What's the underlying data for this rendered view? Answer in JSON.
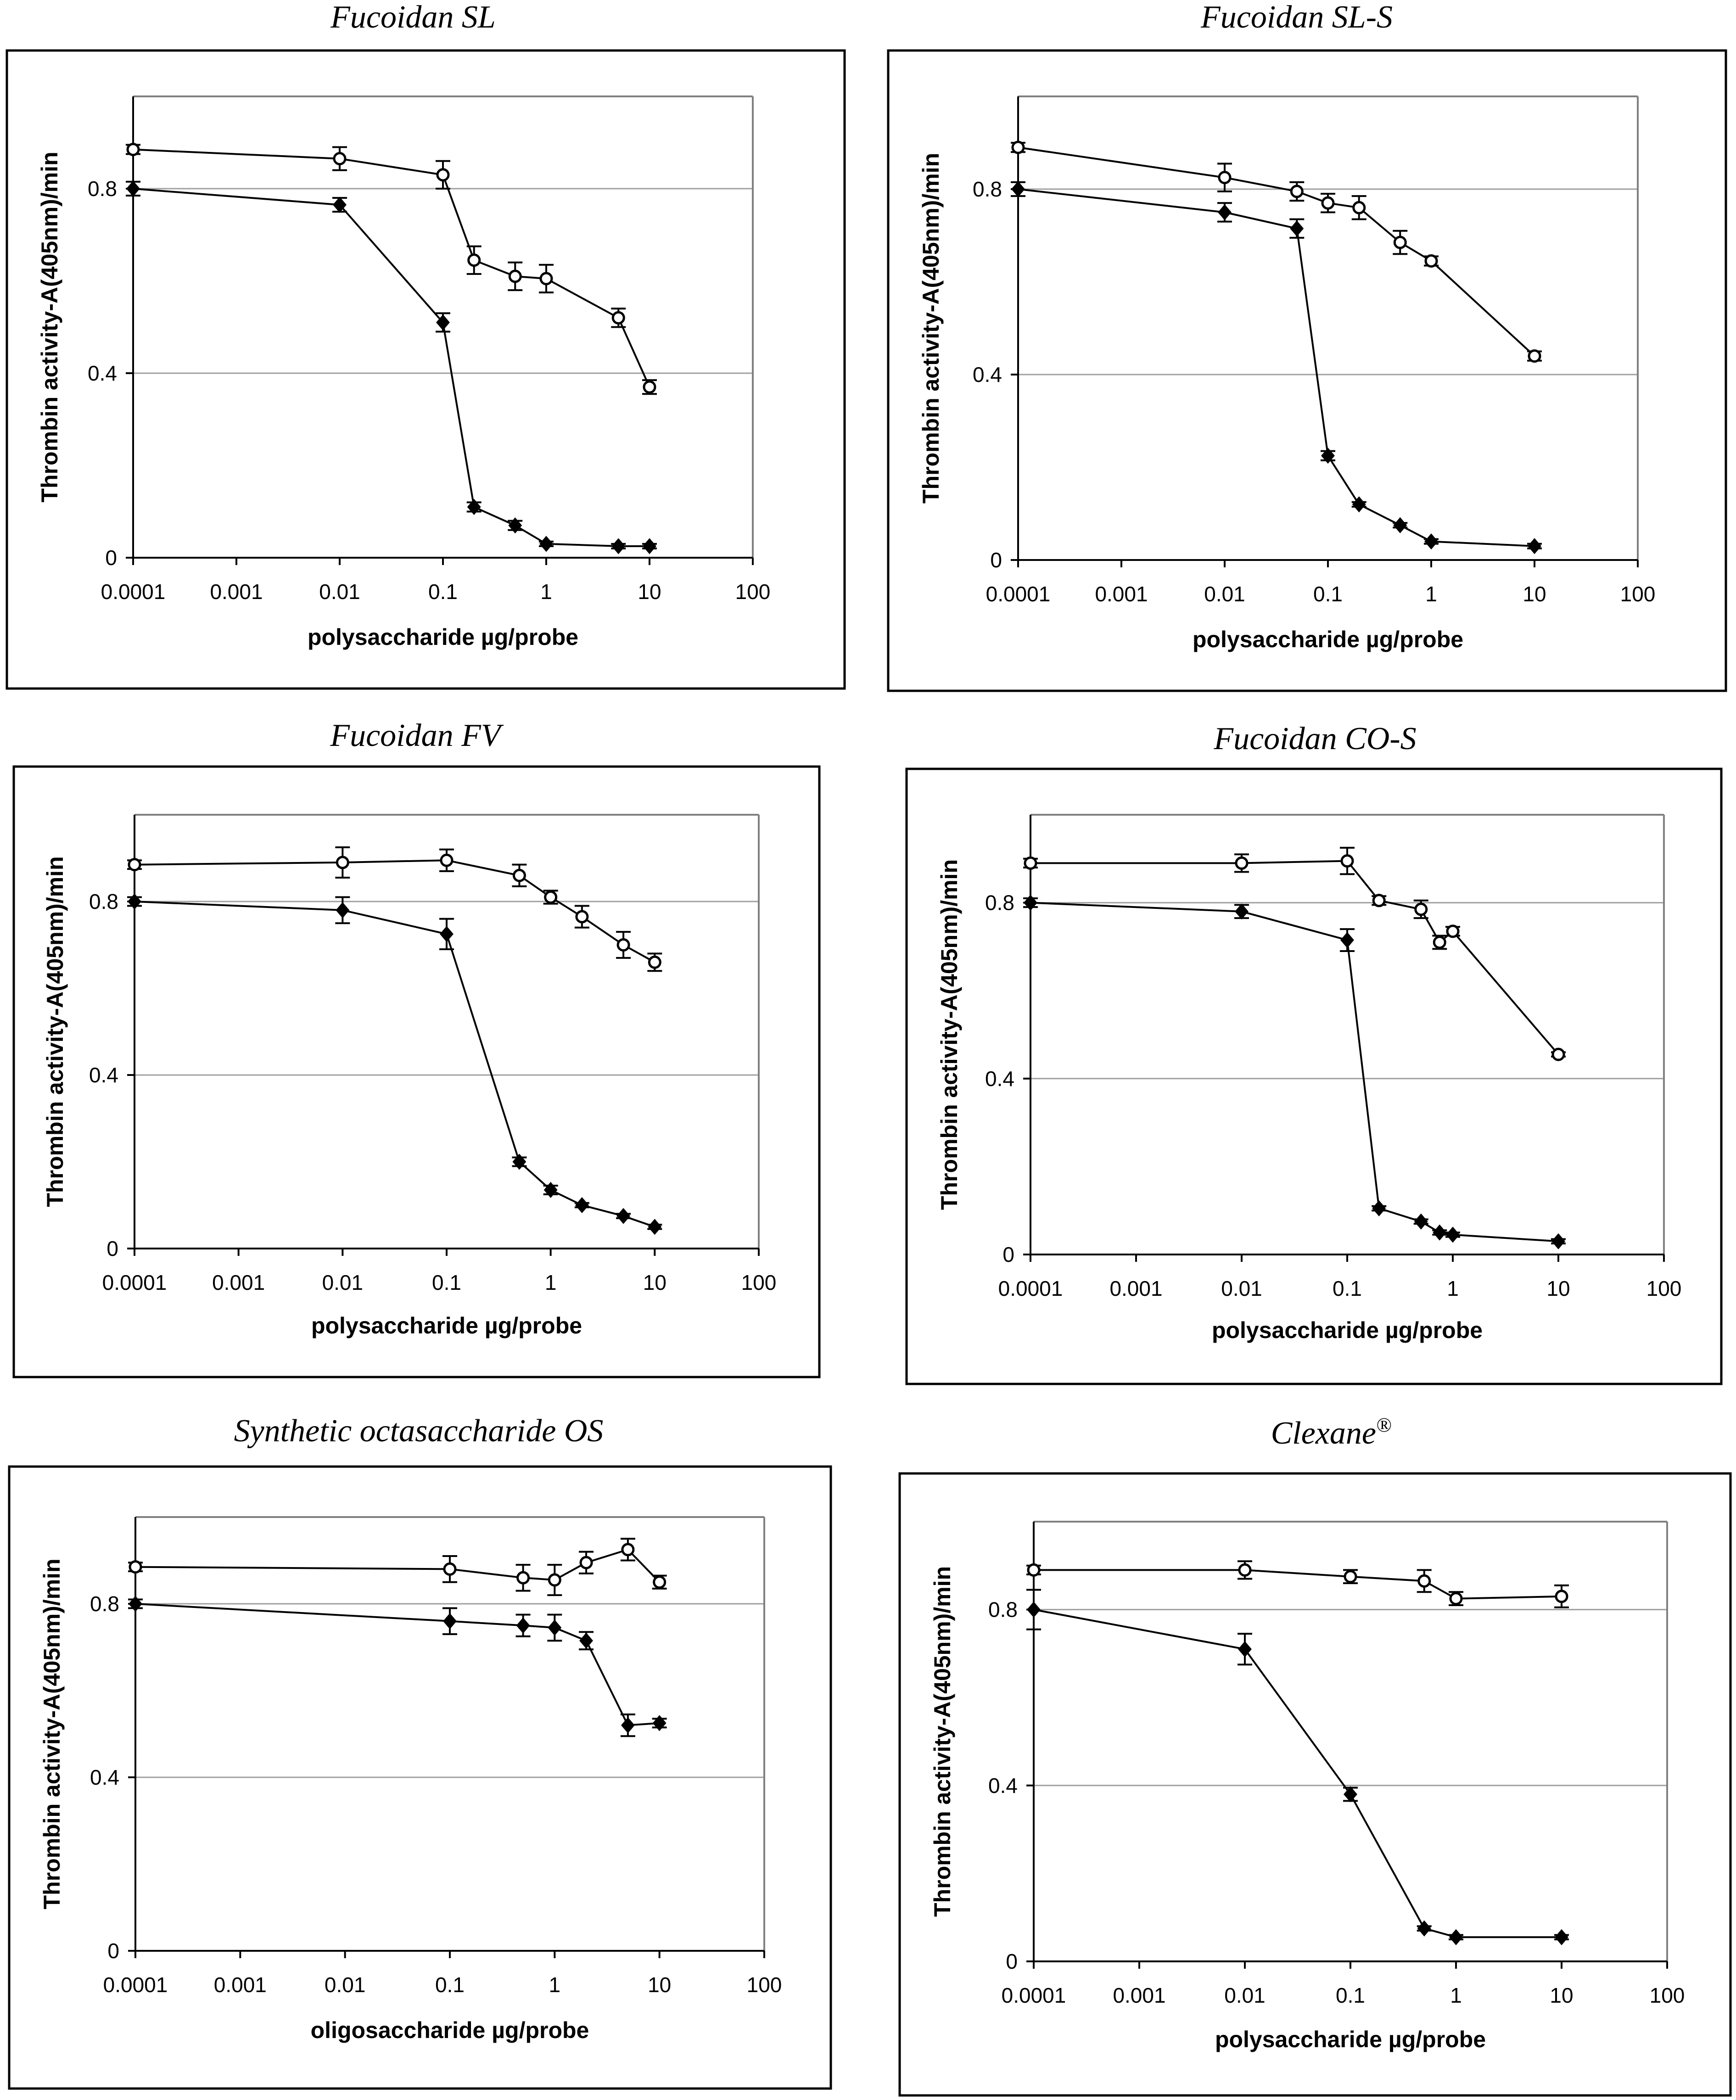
{
  "figure": {
    "series_styles": {
      "open_circle": {
        "stroke": "#000000",
        "fill": "#ffffff"
      },
      "filled_diamond": {
        "stroke": "#000000",
        "fill": "#000000"
      }
    },
    "frame_color": "#000000",
    "plot_border_color": "#808080",
    "grid_color": "#a0a0a0"
  },
  "chart_data": [
    {
      "type": "line",
      "title": "Fucoidan SL",
      "xlabel": "polysaccharide µg/probe",
      "ylabel": "Thrombin activity-A(405nm)/min",
      "xscale": "log",
      "xlim": [
        0.0001,
        100
      ],
      "ylim": [
        0,
        1.0
      ],
      "x_ticks": [
        "0.0001",
        "0.001",
        "0.01",
        "0.1",
        "1",
        "10",
        "100"
      ],
      "y_ticks": [
        "0",
        "0.4",
        "0.8"
      ],
      "grid": "horizontal",
      "series": [
        {
          "marker": "open_circle",
          "x": [
            0.0001,
            0.01,
            0.1,
            0.2,
            0.5,
            1,
            5,
            10
          ],
          "y": [
            0.885,
            0.865,
            0.83,
            0.645,
            0.61,
            0.605,
            0.52,
            0.37
          ],
          "err": [
            0.01,
            0.025,
            0.03,
            0.03,
            0.03,
            0.03,
            0.02,
            0.015
          ]
        },
        {
          "marker": "filled_diamond",
          "x": [
            0.0001,
            0.01,
            0.1,
            0.2,
            0.5,
            1,
            5,
            10
          ],
          "y": [
            0.8,
            0.765,
            0.51,
            0.11,
            0.07,
            0.03,
            0.025,
            0.025
          ],
          "err": [
            0.015,
            0.015,
            0.02,
            0.01,
            0.01,
            0.005,
            0.005,
            0.005
          ]
        }
      ]
    },
    {
      "type": "line",
      "title": "Fucoidan SL-S",
      "xlabel": "polysaccharide µg/probe",
      "ylabel": "Thrombin activity-A(405nm)/min",
      "xscale": "log",
      "xlim": [
        0.0001,
        100
      ],
      "ylim": [
        0,
        1.0
      ],
      "x_ticks": [
        "0.0001",
        "0.001",
        "0.01",
        "0.1",
        "1",
        "10",
        "100"
      ],
      "y_ticks": [
        "0",
        "0.4",
        "0.8"
      ],
      "grid": "horizontal",
      "series": [
        {
          "marker": "open_circle",
          "x": [
            0.0001,
            0.01,
            0.05,
            0.1,
            0.2,
            0.5,
            1,
            10
          ],
          "y": [
            0.89,
            0.825,
            0.795,
            0.77,
            0.76,
            0.685,
            0.645,
            0.44
          ],
          "err": [
            0.01,
            0.03,
            0.02,
            0.02,
            0.025,
            0.025,
            0.01,
            0.01
          ]
        },
        {
          "marker": "filled_diamond",
          "x": [
            0.0001,
            0.01,
            0.05,
            0.1,
            0.2,
            0.5,
            1,
            10
          ],
          "y": [
            0.8,
            0.75,
            0.715,
            0.225,
            0.12,
            0.075,
            0.04,
            0.03
          ],
          "err": [
            0.015,
            0.02,
            0.02,
            0.01,
            0.005,
            0.005,
            0.005,
            0.005
          ]
        }
      ]
    },
    {
      "type": "line",
      "title": "Fucoidan FV",
      "xlabel": "polysaccharide µg/probe",
      "ylabel": "Thrombin activity-A(405nm)/min",
      "xscale": "log",
      "xlim": [
        0.0001,
        100
      ],
      "ylim": [
        0,
        1.0
      ],
      "x_ticks": [
        "0.0001",
        "0.001",
        "0.01",
        "0.1",
        "1",
        "10",
        "100"
      ],
      "y_ticks": [
        "0",
        "0.4",
        "0.8"
      ],
      "grid": "horizontal",
      "series": [
        {
          "marker": "open_circle",
          "x": [
            0.0001,
            0.01,
            0.1,
            0.5,
            1,
            2,
            5,
            10
          ],
          "y": [
            0.885,
            0.89,
            0.895,
            0.86,
            0.81,
            0.765,
            0.7,
            0.66
          ],
          "err": [
            0.01,
            0.035,
            0.025,
            0.025,
            0.015,
            0.025,
            0.03,
            0.02
          ]
        },
        {
          "marker": "filled_diamond",
          "x": [
            0.0001,
            0.01,
            0.1,
            0.5,
            1,
            2,
            5,
            10
          ],
          "y": [
            0.8,
            0.78,
            0.725,
            0.2,
            0.135,
            0.1,
            0.075,
            0.05
          ],
          "err": [
            0.01,
            0.03,
            0.035,
            0.01,
            0.01,
            0.005,
            0.005,
            0.005
          ]
        }
      ]
    },
    {
      "type": "line",
      "title": "Fucoidan CO-S",
      "xlabel": "polysaccharide µg/probe",
      "ylabel": "Thrombin activity-A(405nm)/min",
      "xscale": "log",
      "xlim": [
        0.0001,
        100
      ],
      "ylim": [
        0,
        1.0
      ],
      "x_ticks": [
        "0.0001",
        "0.001",
        "0.01",
        "0.1",
        "1",
        "10",
        "100"
      ],
      "y_ticks": [
        "0",
        "0.4",
        "0.8"
      ],
      "grid": "horizontal",
      "series": [
        {
          "marker": "open_circle",
          "x": [
            0.0001,
            0.01,
            0.1,
            0.2,
            0.5,
            0.75,
            1,
            10
          ],
          "y": [
            0.89,
            0.89,
            0.895,
            0.805,
            0.785,
            0.71,
            0.735,
            0.455
          ],
          "err": [
            0.01,
            0.02,
            0.03,
            0.01,
            0.02,
            0.015,
            0.01,
            0.005
          ]
        },
        {
          "marker": "filled_diamond",
          "x": [
            0.0001,
            0.01,
            0.1,
            0.2,
            0.5,
            0.75,
            1,
            10
          ],
          "y": [
            0.8,
            0.78,
            0.715,
            0.105,
            0.075,
            0.05,
            0.045,
            0.03
          ],
          "err": [
            0.01,
            0.015,
            0.025,
            0.005,
            0.005,
            0.005,
            0.005,
            0.005
          ]
        }
      ]
    },
    {
      "type": "line",
      "title": "Synthetic octasaccharide OS",
      "xlabel": "oligosaccharide µg/probe",
      "ylabel": "Thrombin activity-A(405nm)/min",
      "xscale": "log",
      "xlim": [
        0.0001,
        100
      ],
      "ylim": [
        0,
        1.0
      ],
      "x_ticks": [
        "0.0001",
        "0.001",
        "0.01",
        "0.1",
        "1",
        "10",
        "100"
      ],
      "y_ticks": [
        "0",
        "0.4",
        "0.8"
      ],
      "grid": "horizontal",
      "series": [
        {
          "marker": "open_circle",
          "x": [
            0.0001,
            0.1,
            0.5,
            1,
            2,
            5,
            10
          ],
          "y": [
            0.885,
            0.88,
            0.86,
            0.855,
            0.895,
            0.925,
            0.85
          ],
          "err": [
            0.01,
            0.03,
            0.03,
            0.035,
            0.025,
            0.025,
            0.015
          ]
        },
        {
          "marker": "filled_diamond",
          "x": [
            0.0001,
            0.1,
            0.5,
            1,
            2,
            5,
            10
          ],
          "y": [
            0.8,
            0.76,
            0.75,
            0.745,
            0.715,
            0.52,
            0.525
          ],
          "err": [
            0.01,
            0.03,
            0.025,
            0.03,
            0.02,
            0.025,
            0.01
          ]
        }
      ]
    },
    {
      "type": "line",
      "title": "Clexane",
      "title_superscript": "®",
      "xlabel": "polysaccharide µg/probe",
      "ylabel": "Thrombin activity-A(405nm)/min",
      "xscale": "log",
      "xlim": [
        0.0001,
        100
      ],
      "ylim": [
        0,
        1.0
      ],
      "x_ticks": [
        "0.0001",
        "0.001",
        "0.01",
        "0.1",
        "1",
        "10",
        "100"
      ],
      "y_ticks": [
        "0",
        "0.4",
        "0.8"
      ],
      "grid": "horizontal",
      "series": [
        {
          "marker": "open_circle",
          "x": [
            0.0001,
            0.01,
            0.1,
            0.5,
            1,
            10
          ],
          "y": [
            0.89,
            0.89,
            0.875,
            0.865,
            0.825,
            0.83
          ],
          "err": [
            0.01,
            0.02,
            0.015,
            0.025,
            0.015,
            0.025
          ]
        },
        {
          "marker": "filled_diamond",
          "x": [
            0.0001,
            0.01,
            0.1,
            0.5,
            1,
            10
          ],
          "y": [
            0.8,
            0.71,
            0.38,
            0.075,
            0.055,
            0.055
          ],
          "err": [
            0.045,
            0.035,
            0.015,
            0.005,
            0.005,
            0.005
          ]
        }
      ]
    }
  ]
}
